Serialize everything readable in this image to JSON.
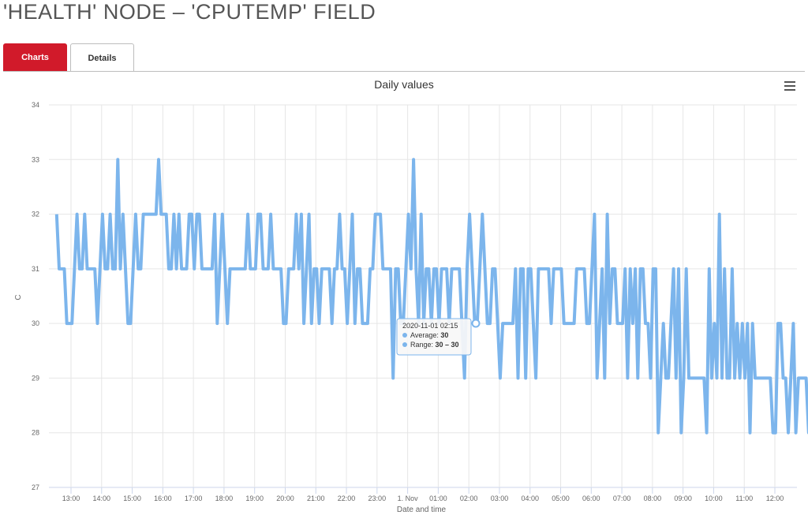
{
  "page": {
    "title": "'HEALTH' NODE – 'CPUTEMP' FIELD"
  },
  "tabs": [
    {
      "label": "Charts",
      "active": true
    },
    {
      "label": "Details",
      "active": false
    }
  ],
  "colors": {
    "accent": "#d11a2a",
    "series": "#7cb5ec"
  },
  "chart_data": {
    "type": "line",
    "title": "Daily values",
    "xlabel": "Date and time",
    "ylabel": "C",
    "ylim": [
      27,
      34
    ],
    "yticks": [
      27,
      28,
      29,
      30,
      31,
      32,
      33,
      34
    ],
    "xticks": [
      "13:00",
      "14:00",
      "15:00",
      "16:00",
      "17:00",
      "18:00",
      "19:00",
      "20:00",
      "21:00",
      "22:00",
      "23:00",
      "1. Nov",
      "01:00",
      "02:00",
      "03:00",
      "04:00",
      "05:00",
      "06:00",
      "07:00",
      "08:00",
      "09:00",
      "10:00",
      "11:00",
      "12:00"
    ],
    "grid": true,
    "series": [
      {
        "name": "Average",
        "x_start_hours": 12.53,
        "x_step_hours": 0.0833,
        "values": [
          32,
          31,
          31,
          31,
          30,
          30,
          30,
          31,
          32,
          31,
          31,
          32,
          31,
          31,
          31,
          31,
          30,
          31,
          32,
          31,
          31,
          32,
          31,
          31,
          33,
          31,
          32,
          31,
          30,
          30,
          31,
          32,
          31,
          31,
          32,
          32,
          32,
          32,
          32,
          32,
          33,
          32,
          32,
          32,
          31,
          31,
          32,
          31,
          32,
          31,
          31,
          31,
          32,
          32,
          31,
          32,
          32,
          31,
          31,
          31,
          31,
          31,
          32,
          30,
          31,
          32,
          31,
          30,
          31,
          31,
          31,
          31,
          31,
          31,
          31,
          32,
          31,
          31,
          31,
          32,
          32,
          31,
          31,
          31,
          32,
          31,
          31,
          31,
          31,
          30,
          30,
          31,
          31,
          31,
          32,
          31,
          32,
          30,
          31,
          32,
          30,
          31,
          31,
          30,
          31,
          31,
          31,
          31,
          30,
          31,
          31,
          32,
          31,
          31,
          30,
          31,
          32,
          30,
          31,
          31,
          30,
          30,
          30,
          31,
          31,
          32,
          32,
          32,
          31,
          31,
          31,
          31,
          29,
          31,
          31,
          30,
          30,
          31,
          32,
          31,
          33,
          31,
          30,
          32,
          30,
          31,
          31,
          30,
          31,
          31,
          30,
          31,
          31,
          31,
          30,
          31,
          31,
          31,
          31,
          30,
          29,
          31,
          32,
          31,
          30,
          30,
          31,
          32,
          31,
          30,
          30,
          31,
          31,
          30,
          29,
          30,
          30,
          30,
          30,
          30,
          31,
          29,
          31,
          31,
          29,
          31,
          31,
          30,
          29,
          31,
          31,
          31,
          31,
          31,
          30,
          31,
          31,
          31,
          31,
          30,
          30,
          30,
          30,
          30,
          31,
          31,
          31,
          31,
          30,
          30,
          31,
          32,
          29,
          30,
          31,
          29,
          32,
          30,
          31,
          31,
          30,
          30,
          30,
          31,
          29,
          31,
          30,
          31,
          29,
          31,
          31,
          30,
          30,
          29,
          31,
          31,
          28,
          29,
          30,
          29,
          29,
          30,
          31,
          29,
          31,
          28,
          29,
          31,
          29,
          29,
          29,
          29,
          29,
          29,
          29,
          28,
          31,
          29,
          30,
          29,
          32,
          29,
          31,
          29,
          29,
          31,
          29,
          30,
          29,
          30,
          29,
          30,
          28,
          30,
          29,
          29,
          29,
          29,
          29,
          29,
          29,
          28,
          28,
          30,
          30,
          29,
          29,
          28,
          29,
          30,
          28,
          29,
          29,
          29,
          29,
          28,
          29
        ]
      }
    ],
    "tooltip": {
      "header": "2020-11-01 02:15",
      "average_label": "Average: ",
      "average_value": "30",
      "range_label": "Range: ",
      "range_value": "30 – 30"
    }
  }
}
